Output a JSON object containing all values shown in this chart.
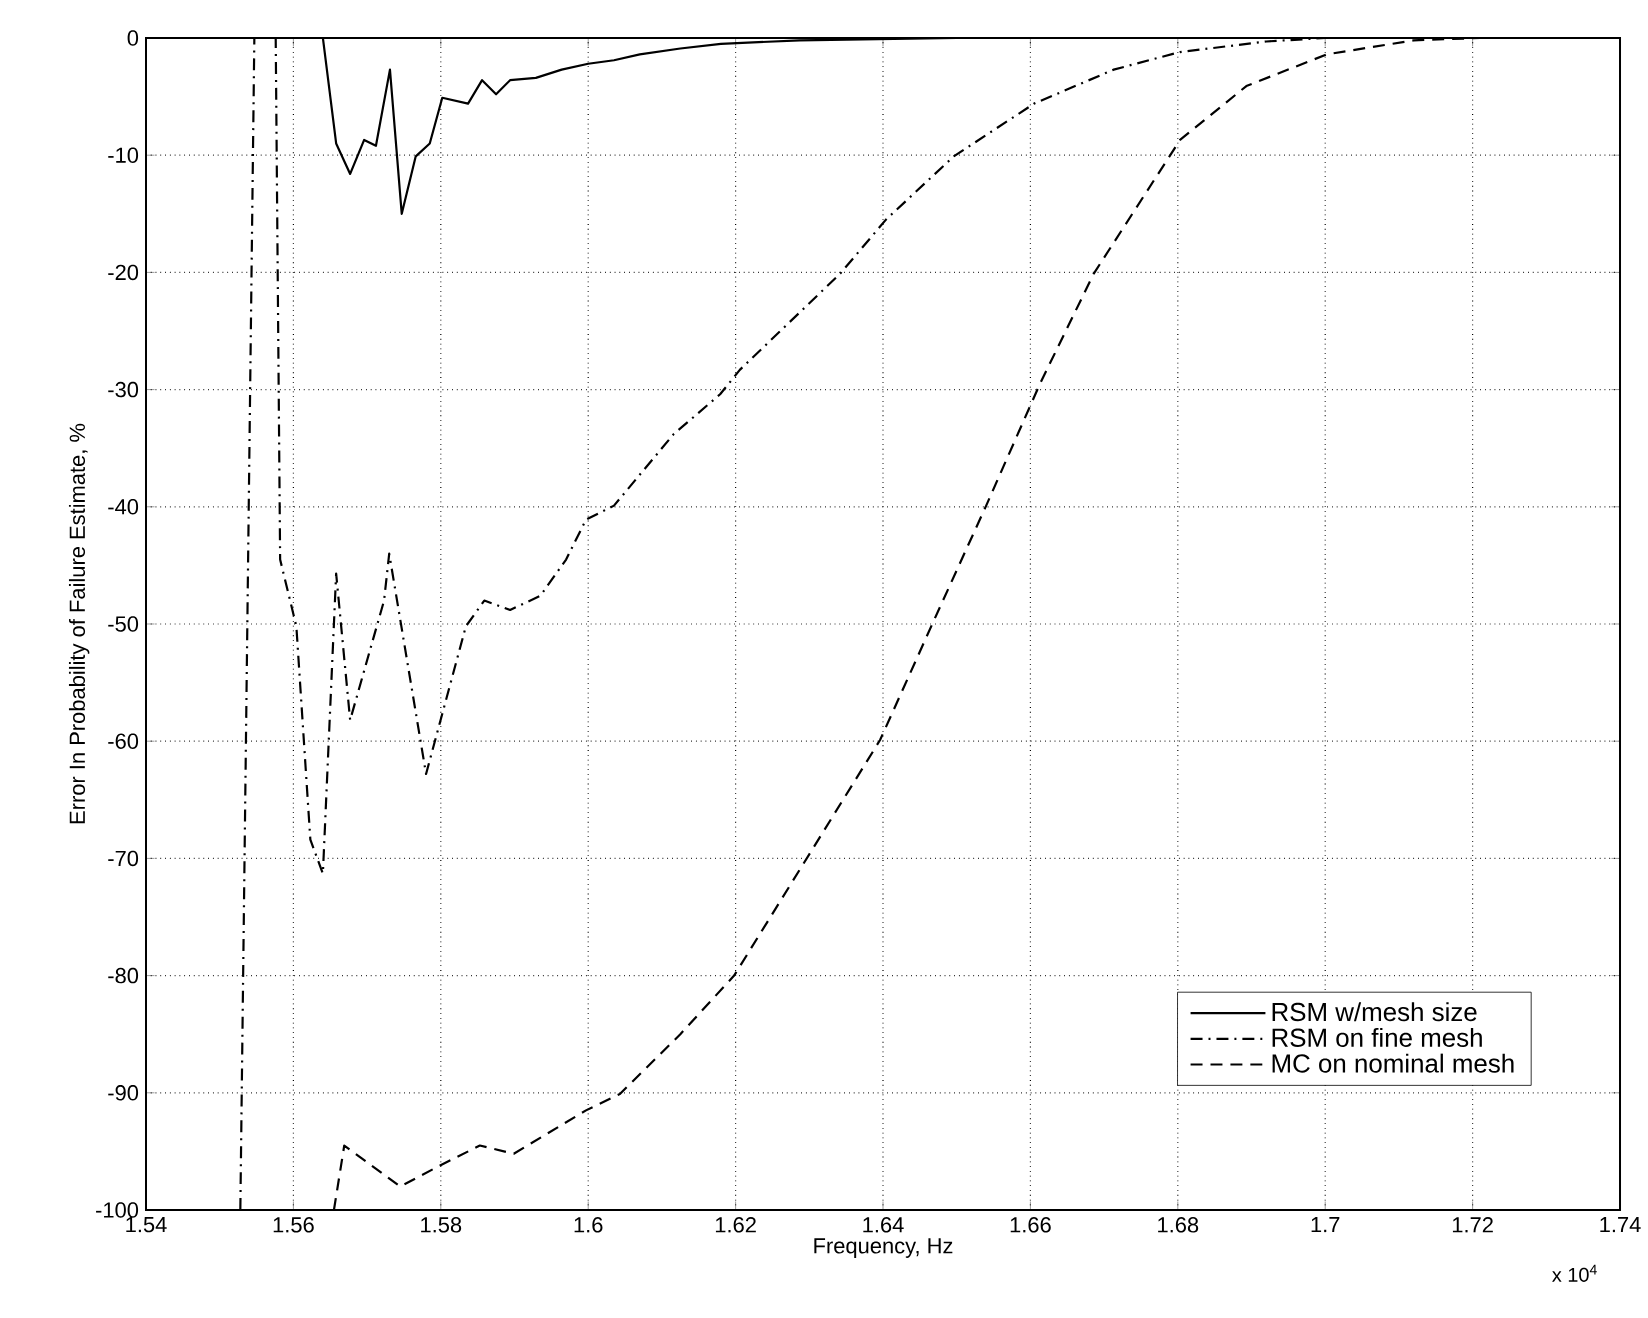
{
  "chart_data": {
    "type": "line",
    "xlabel": "Frequency, Hz",
    "ylabel": "Error In Probability of Failure Estimate, %",
    "annotations": [
      "x 10$^{4}$"
    ],
    "xlim": [
      1.54,
      1.74
    ],
    "ylim": [
      -100,
      0
    ],
    "xticks": [
      1.54,
      1.56,
      1.58,
      1.6,
      1.62,
      1.64,
      1.66,
      1.68,
      1.7,
      1.72,
      1.74
    ],
    "yticks": [
      -100,
      -90,
      -80,
      -70,
      -60,
      -50,
      -40,
      -30,
      -20,
      -10,
      0
    ],
    "grid": true,
    "legend": "bottom right",
    "marker": "none",
    "series": [
      {
        "name": "RSM w/mesh size",
        "color": "#000000",
        "line_style": "solid",
        "x": [
          1.564,
          1.5658,
          1.5677,
          1.5696,
          1.5712,
          1.5731,
          1.5747,
          1.5766,
          1.5785,
          1.5802,
          1.5837,
          1.5856,
          1.5875,
          1.5894,
          1.5929,
          1.5964,
          1.6,
          1.6035,
          1.607,
          1.6125,
          1.618,
          1.6287,
          1.65,
          1.72
        ],
        "values": [
          0,
          -9.0,
          -11.6,
          -8.7,
          -9.2,
          -2.7,
          -15.0,
          -10.1,
          -9.0,
          -5.1,
          -5.6,
          -3.6,
          -4.8,
          -3.6,
          -3.4,
          -2.7,
          -2.2,
          -1.9,
          -1.4,
          -0.9,
          -0.5,
          -0.2,
          0,
          0
        ]
      },
      {
        "name": "RSM on fine mesh",
        "color": "#000000",
        "line_style": "dashdot",
        "x": [
          1.5528,
          1.5547,
          1.5576,
          1.5582,
          1.5604,
          1.5623,
          1.564,
          1.5658,
          1.5677,
          1.5723,
          1.573,
          1.578,
          1.5834,
          1.5859,
          1.5894,
          1.5935,
          1.597,
          1.5997,
          1.6035,
          1.6116,
          1.6179,
          1.6206,
          1.6342,
          1.6404,
          1.6496,
          1.6605,
          1.6713,
          1.6803,
          1.692,
          1.7
        ],
        "values": [
          -100,
          0,
          0,
          -44.5,
          -50.2,
          -68.4,
          -71.3,
          -45.7,
          -58.2,
          -48,
          -44,
          -62.8,
          -50.2,
          -48,
          -48.8,
          -47.6,
          -44.5,
          -41.1,
          -39.9,
          -33.8,
          -30.4,
          -28.3,
          -20.1,
          -15.5,
          -10.1,
          -5.6,
          -2.7,
          -1.2,
          -0.3,
          0
        ]
      },
      {
        "name": "MC on nominal mesh",
        "color": "#000000",
        "line_style": "dashed",
        "x": [
          1.5655,
          1.5669,
          1.5745,
          1.5799,
          1.5853,
          1.5899,
          1.5997,
          1.6043,
          1.6125,
          1.6198,
          1.6396,
          1.6469,
          1.654,
          1.6613,
          1.6686,
          1.6803,
          1.6893,
          1.7002,
          1.712,
          1.721
        ],
        "values": [
          -100,
          -94.5,
          -98,
          -96.2,
          -94.5,
          -95.2,
          -91.5,
          -90.1,
          -85.0,
          -80.0,
          -59.9,
          -49.7,
          -39.9,
          -29.5,
          -20.1,
          -8.7,
          -4.1,
          -1.4,
          -0.2,
          0
        ]
      }
    ]
  }
}
